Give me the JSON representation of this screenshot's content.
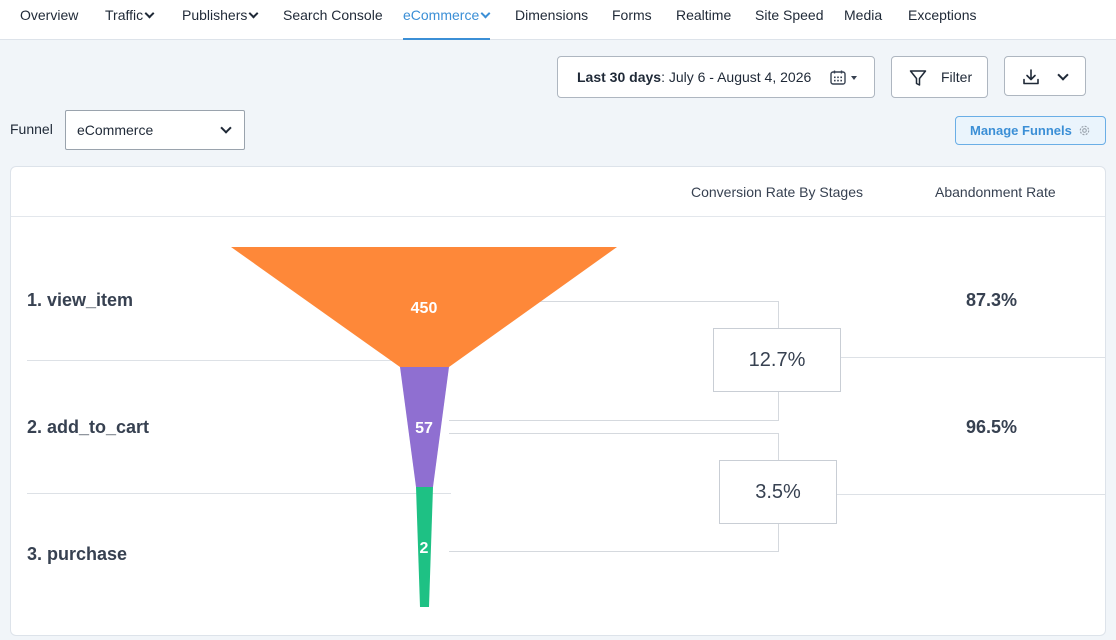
{
  "nav": {
    "items": [
      {
        "label": "Overview"
      },
      {
        "label": "Traffic"
      },
      {
        "label": "Publishers"
      },
      {
        "label": "Search Console"
      },
      {
        "label": "eCommerce"
      },
      {
        "label": "Dimensions"
      },
      {
        "label": "Forms"
      },
      {
        "label": "Realtime"
      },
      {
        "label": "Site Speed"
      },
      {
        "label": "Media"
      },
      {
        "label": "Exceptions"
      }
    ],
    "active": "eCommerce"
  },
  "toolbar": {
    "date_prefix": "Last 30 days",
    "date_range": ": July 6 - August 4, 2026",
    "filter_label": "Filter"
  },
  "funnel": {
    "label": "Funnel",
    "selected": "eCommerce",
    "manage_label": "Manage Funnels"
  },
  "table": {
    "col_conversion": "Conversion Rate By Stages",
    "col_abandonment": "Abandonment Rate",
    "stages": [
      {
        "label": "1. view_item",
        "value": "450",
        "abandonment": "87.3%",
        "color": "#fe8839"
      },
      {
        "label": "2. add_to_cart",
        "value": "57",
        "abandonment": "96.5%",
        "color": "#8f6fd1"
      },
      {
        "label": "3. purchase",
        "value": "2",
        "abandonment": "",
        "color": "#1ec184"
      }
    ],
    "conversions": [
      "12.7%",
      "3.5%"
    ]
  },
  "colors": {
    "accent": "#3b8fd6",
    "stage1": "#fe8839",
    "stage2": "#8f6fd1",
    "stage3": "#1ec184"
  }
}
